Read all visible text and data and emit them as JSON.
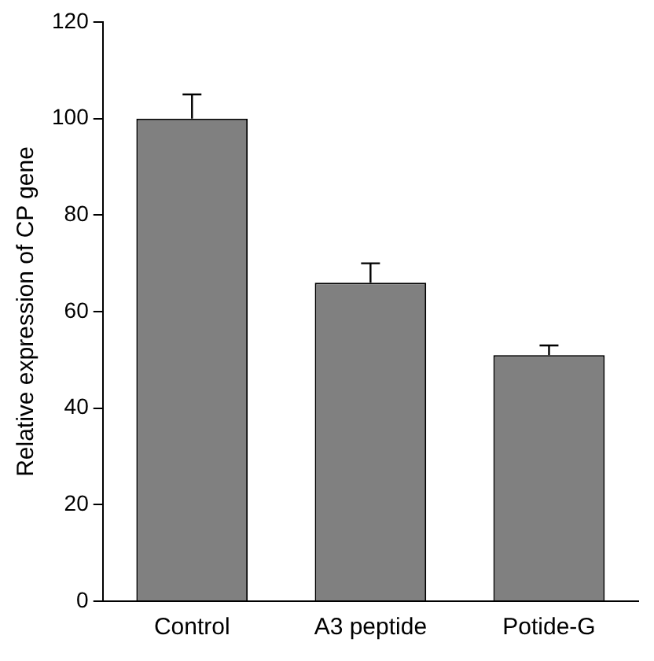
{
  "chart_data": {
    "type": "bar",
    "ylabel": "Relative expression of CP gene",
    "categories": [
      "Control",
      "A3 peptide",
      "Potide-G"
    ],
    "values": [
      100,
      66,
      51
    ],
    "errors": [
      [
        100,
        105
      ],
      [
        66,
        70
      ],
      [
        51,
        53
      ]
    ],
    "color": "#808080",
    "ylim": [
      0,
      120
    ],
    "yticks": [
      0,
      20,
      40,
      60,
      80,
      100,
      120
    ],
    "grid": false,
    "legend": false
  }
}
